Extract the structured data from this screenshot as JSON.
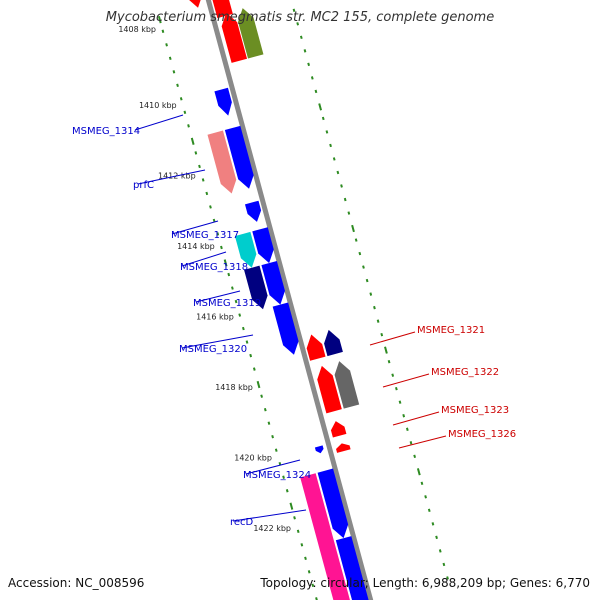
{
  "header": {
    "title": "Mycobacterium smegmatis str. MC2 155, complete genome"
  },
  "footer": {
    "accession": "Accession: NC_008596",
    "summary": "Topology: circular; Length: 6,988,209 bp; Genes: 6,770"
  },
  "colors": {
    "backbone": "#8a8a8a",
    "tick": "#2e8b22",
    "forward_label": "#0000cc",
    "reverse_label": "#cc0000"
  },
  "map": {
    "kbp_labels": [
      "1408 kbp",
      "1410 kbp",
      "1412 kbp",
      "1414 kbp",
      "1416 kbp",
      "1418 kbp",
      "1420 kbp",
      "1422 kbp"
    ],
    "forward_labels": [
      "MSMEG_1314",
      "prfC",
      "MSMEG_1317",
      "MSMEG_1318",
      "MSMEG_1319",
      "MSMEG_1320",
      "MSMEG_1324",
      "recD"
    ],
    "reverse_labels": [
      "MSMEG_1321",
      "MSMEG_1322",
      "MSMEG_1323",
      "MSMEG_1326"
    ]
  }
}
